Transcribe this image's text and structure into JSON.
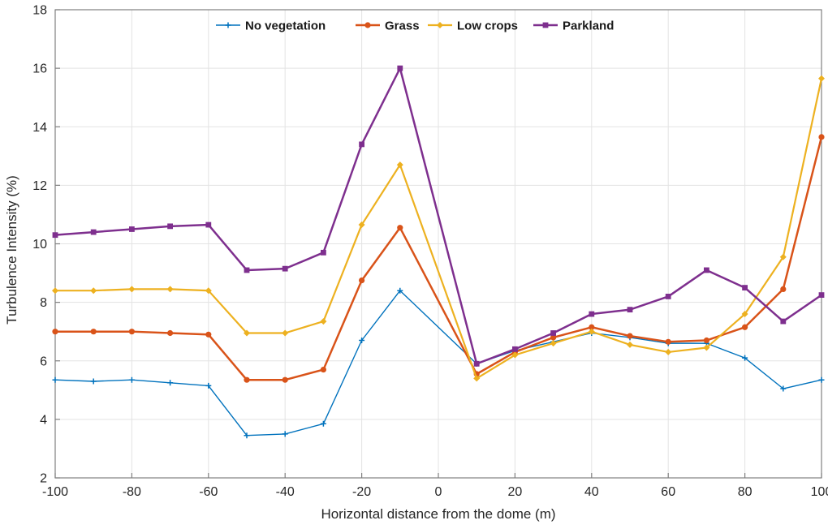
{
  "chart_data": {
    "type": "line",
    "title": "",
    "xlabel": "Horizontal distance from the dome (m)",
    "ylabel": "Turbulence Intensity (%)",
    "xlim": [
      -100,
      100
    ],
    "ylim": [
      2,
      18
    ],
    "x_ticks": [
      -100,
      -80,
      -60,
      -40,
      -20,
      0,
      20,
      40,
      60,
      80,
      100
    ],
    "y_ticks": [
      2,
      4,
      6,
      8,
      10,
      12,
      14,
      16,
      18
    ],
    "grid": true,
    "legend_position": "top-inside-horizontal",
    "axis_color": "#808080",
    "grid_color": "#e3e3e3",
    "x": [
      -100,
      -90,
      -80,
      -70,
      -60,
      -50,
      -40,
      -30,
      -20,
      -10,
      10,
      20,
      30,
      40,
      50,
      60,
      70,
      80,
      90,
      100
    ],
    "series": [
      {
        "name": "No vegetation",
        "color": "#0072BD",
        "marker": "plus",
        "line_width": 1.4,
        "values": [
          5.35,
          5.3,
          5.35,
          5.25,
          5.15,
          3.45,
          3.5,
          3.85,
          6.7,
          8.4,
          5.9,
          6.35,
          6.65,
          6.95,
          6.8,
          6.6,
          6.6,
          6.1,
          5.05,
          5.35
        ]
      },
      {
        "name": "Grass",
        "color": "#D95319",
        "marker": "circle",
        "line_width": 2.5,
        "values": [
          7.0,
          7.0,
          7.0,
          6.95,
          6.9,
          5.35,
          5.35,
          5.7,
          8.75,
          10.55,
          5.55,
          6.3,
          6.8,
          7.15,
          6.85,
          6.65,
          6.7,
          7.15,
          8.45,
          13.65
        ]
      },
      {
        "name": "Low crops",
        "color": "#EDB120",
        "marker": "diamond",
        "line_width": 2.2,
        "values": [
          8.4,
          8.4,
          8.45,
          8.45,
          8.4,
          6.95,
          6.95,
          7.35,
          10.65,
          12.7,
          5.4,
          6.2,
          6.6,
          7.0,
          6.55,
          6.3,
          6.45,
          7.6,
          9.55,
          15.65
        ]
      },
      {
        "name": "Parkland",
        "color": "#7E2F8E",
        "marker": "square",
        "line_width": 2.5,
        "values": [
          10.3,
          10.4,
          10.5,
          10.6,
          10.65,
          9.1,
          9.15,
          9.7,
          13.4,
          16.0,
          5.9,
          6.4,
          6.95,
          7.6,
          7.75,
          8.2,
          9.1,
          8.5,
          7.35,
          8.25
        ]
      }
    ]
  }
}
